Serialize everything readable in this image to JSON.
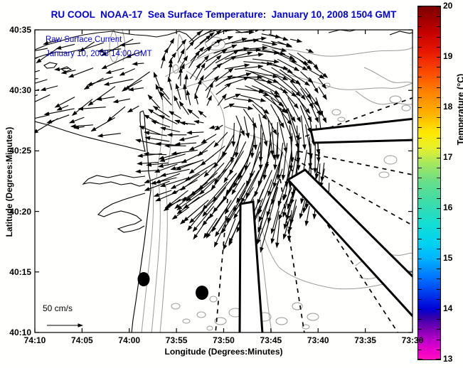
{
  "colors": {
    "heading_blue": "#0000DD",
    "contour_gray": "#9a9a9a",
    "ink": "#000000"
  },
  "chart_data": {
    "type": "quiver-map",
    "title": "RU COOL  NOAA-17  Sea Surface Temperature:  January 10, 2008 1504 GMT",
    "annotation": {
      "line1": "Raw Surface Current",
      "line2": "January 10, 2008 14:00 GMT"
    },
    "axes": {
      "x": {
        "label": "Longitude (Degrees:Minutes)",
        "ticks": [
          "74:10",
          "74:05",
          "74:00",
          "73:55",
          "73:50",
          "73:45",
          "73:40",
          "73:35",
          "73:30"
        ],
        "range_deg_west": [
          74.1667,
          73.5
        ]
      },
      "y": {
        "label": "Latitude (Degrees:Minutes)",
        "ticks": [
          "40:35",
          "40:30",
          "40:25",
          "40:20",
          "40:15",
          "40:10"
        ],
        "range_deg_north": [
          40.5833,
          40.1667
        ]
      }
    },
    "colorbar": {
      "label": "Temperature (°C)",
      "min": 13,
      "max": 20,
      "tick_labels": [
        "20",
        "19",
        "18",
        "17",
        "16",
        "15",
        "14",
        "13"
      ],
      "minor_tick_step": 0.2,
      "stops": [
        {
          "p": 0,
          "c": "#7a0000"
        },
        {
          "p": 7.1,
          "c": "#c30000"
        },
        {
          "p": 12.9,
          "c": "#e81800"
        },
        {
          "p": 18.6,
          "c": "#fb4a00"
        },
        {
          "p": 24.3,
          "c": "#ff8200"
        },
        {
          "p": 30,
          "c": "#ffae00"
        },
        {
          "p": 35.7,
          "c": "#ffe800"
        },
        {
          "p": 40,
          "c": "#e8f02c"
        },
        {
          "p": 44.3,
          "c": "#a8e85c"
        },
        {
          "p": 50,
          "c": "#64de8c"
        },
        {
          "p": 55.7,
          "c": "#3cdcaa"
        },
        {
          "p": 61.4,
          "c": "#14ded2"
        },
        {
          "p": 67.1,
          "c": "#00d2f2"
        },
        {
          "p": 71.4,
          "c": "#00b4ff"
        },
        {
          "p": 77.1,
          "c": "#0070ff"
        },
        {
          "p": 82.1,
          "c": "#0030e8"
        },
        {
          "p": 85.7,
          "c": "#0000d4"
        },
        {
          "p": 87.9,
          "c": "#3000ac"
        },
        {
          "p": 91.4,
          "c": "#7c00b4"
        },
        {
          "p": 95,
          "c": "#c400cc"
        },
        {
          "p": 97.9,
          "c": "#f000c8"
        },
        {
          "p": 100,
          "c": "#ff10be"
        }
      ]
    },
    "scale_legend": {
      "label": "50 cm/s",
      "speed_cm_s": 50
    },
    "vector_field": {
      "description": "HF-radar raw surface current vectors forming a clockwise swirl with a strong southward jet on its eastern flank",
      "rotation": "clockwise",
      "eddy_center": {
        "lon": "73:50 W",
        "lat": "40:28 N"
      },
      "typical_speed_cm_s": [
        15,
        50
      ]
    },
    "map_features": [
      "New Jersey coastline with Sandy Hook spit",
      "Raritan Bay and Long Island south shore",
      "Navesink / Shrewsbury river estuaries",
      "gray bathymetry contours (Hudson Shelf Valley)",
      "thick black shipping-lane polygons",
      "dashed radar-bearing lines radiating offshore",
      "two solid black station dots"
    ]
  }
}
